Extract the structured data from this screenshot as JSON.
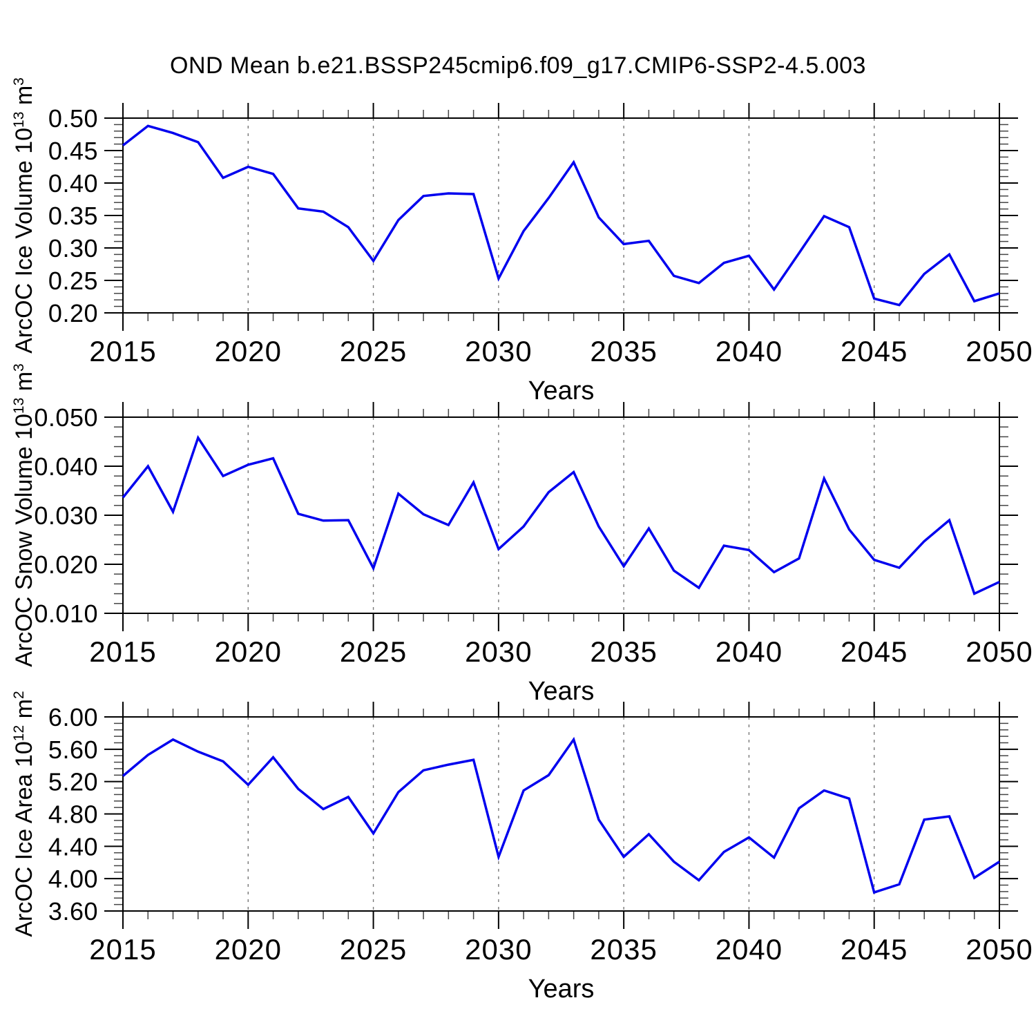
{
  "title": "OND Mean b.e21.BSSP245cmip6.f09_g17.CMIP6-SSP2-4.5.003",
  "style": {
    "line_color": "#0000EE",
    "grid_color": "#777777",
    "axis_color": "#000000",
    "minor_tick_color": "#444444",
    "background": "#FFFFFF"
  },
  "chart_data": [
    {
      "type": "line",
      "xlabel": "Years",
      "ylabel_parts": [
        {
          "t": "ArcOC Ice Volume 10"
        },
        {
          "t": "13",
          "sup": true
        },
        {
          "t": " m"
        },
        {
          "t": "3",
          "sup": true
        }
      ],
      "xlim": [
        2015,
        2050
      ],
      "ylim": [
        0.2,
        0.5
      ],
      "xtick_years": [
        2015,
        2020,
        2025,
        2030,
        2035,
        2040,
        2045,
        2050
      ],
      "grid_years": [
        2020,
        2025,
        2030,
        2035,
        2040,
        2045
      ],
      "yticks": [
        0.5,
        0.45,
        0.4,
        0.35,
        0.3,
        0.25,
        0.2
      ],
      "ytick_labels": [
        "0.50",
        "0.45",
        "0.40",
        "0.35",
        "0.30",
        "0.25",
        "0.20"
      ],
      "x": [
        2015,
        2016,
        2017,
        2018,
        2019,
        2020,
        2021,
        2022,
        2023,
        2024,
        2025,
        2026,
        2027,
        2028,
        2029,
        2030,
        2031,
        2032,
        2033,
        2034,
        2035,
        2036,
        2037,
        2038,
        2039,
        2040,
        2041,
        2042,
        2043,
        2044,
        2045,
        2046,
        2047,
        2048,
        2049,
        2050
      ],
      "values": [
        0.458,
        0.488,
        0.477,
        0.463,
        0.408,
        0.425,
        0.414,
        0.361,
        0.356,
        0.332,
        0.28,
        0.343,
        0.38,
        0.384,
        0.383,
        0.253,
        0.326,
        0.377,
        0.432,
        0.347,
        0.306,
        0.311,
        0.257,
        0.246,
        0.277,
        0.288,
        0.236,
        0.292,
        0.349,
        0.332,
        0.222,
        0.212,
        0.26,
        0.29,
        0.218,
        0.23
      ]
    },
    {
      "type": "line",
      "xlabel": "Years",
      "ylabel_parts": [
        {
          "t": "ArcOC Snow Volume 10"
        },
        {
          "t": "13",
          "sup": true
        },
        {
          "t": " m"
        },
        {
          "t": "3",
          "sup": true
        }
      ],
      "xlim": [
        2015,
        2050
      ],
      "ylim": [
        0.01,
        0.05
      ],
      "xtick_years": [
        2015,
        2020,
        2025,
        2030,
        2035,
        2040,
        2045,
        2050
      ],
      "grid_years": [
        2020,
        2025,
        2030,
        2035,
        2040,
        2045
      ],
      "yticks": [
        0.05,
        0.04,
        0.03,
        0.02,
        0.01
      ],
      "ytick_labels": [
        "0.050",
        "0.040",
        "0.030",
        "0.020",
        "0.010"
      ],
      "x": [
        2015,
        2016,
        2017,
        2018,
        2019,
        2020,
        2021,
        2022,
        2023,
        2024,
        2025,
        2026,
        2027,
        2028,
        2029,
        2030,
        2031,
        2032,
        2033,
        2034,
        2035,
        2036,
        2037,
        2038,
        2039,
        2040,
        2041,
        2042,
        2043,
        2044,
        2045,
        2046,
        2047,
        2048,
        2049,
        2050
      ],
      "values": [
        0.0336,
        0.04,
        0.0307,
        0.0458,
        0.038,
        0.0403,
        0.0416,
        0.0303,
        0.0289,
        0.029,
        0.0192,
        0.0344,
        0.0302,
        0.028,
        0.0367,
        0.0231,
        0.0277,
        0.0347,
        0.0388,
        0.0277,
        0.0196,
        0.0273,
        0.0187,
        0.0152,
        0.0238,
        0.0229,
        0.0184,
        0.0212,
        0.0375,
        0.0271,
        0.0209,
        0.0193,
        0.0247,
        0.029,
        0.014,
        0.0164
      ]
    },
    {
      "type": "line",
      "xlabel": "Years",
      "ylabel_parts": [
        {
          "t": "ArcOC Ice Area 10"
        },
        {
          "t": "12",
          "sup": true
        },
        {
          "t": " m"
        },
        {
          "t": "2",
          "sup": true
        }
      ],
      "xlim": [
        2015,
        2050
      ],
      "ylim": [
        3.6,
        6.0
      ],
      "xtick_years": [
        2015,
        2020,
        2025,
        2030,
        2035,
        2040,
        2045,
        2050
      ],
      "grid_years": [
        2020,
        2025,
        2030,
        2035,
        2040,
        2045
      ],
      "yticks": [
        6.0,
        5.6,
        5.2,
        4.8,
        4.4,
        4.0,
        3.6
      ],
      "ytick_labels": [
        "6.00",
        "5.60",
        "5.20",
        "4.80",
        "4.40",
        "4.00",
        "3.60"
      ],
      "x": [
        2015,
        2016,
        2017,
        2018,
        2019,
        2020,
        2021,
        2022,
        2023,
        2024,
        2025,
        2026,
        2027,
        2028,
        2029,
        2030,
        2031,
        2032,
        2033,
        2034,
        2035,
        2036,
        2037,
        2038,
        2039,
        2040,
        2041,
        2042,
        2043,
        2044,
        2045,
        2046,
        2047,
        2048,
        2049,
        2050
      ],
      "values": [
        5.27,
        5.53,
        5.72,
        5.57,
        5.45,
        5.16,
        5.5,
        5.11,
        4.86,
        5.01,
        4.56,
        5.07,
        5.34,
        5.41,
        5.47,
        4.27,
        5.09,
        5.28,
        5.72,
        4.73,
        4.27,
        4.55,
        4.21,
        3.98,
        4.33,
        4.51,
        4.26,
        4.87,
        5.09,
        4.99,
        3.83,
        3.93,
        4.73,
        4.77,
        4.01,
        4.21
      ]
    }
  ]
}
